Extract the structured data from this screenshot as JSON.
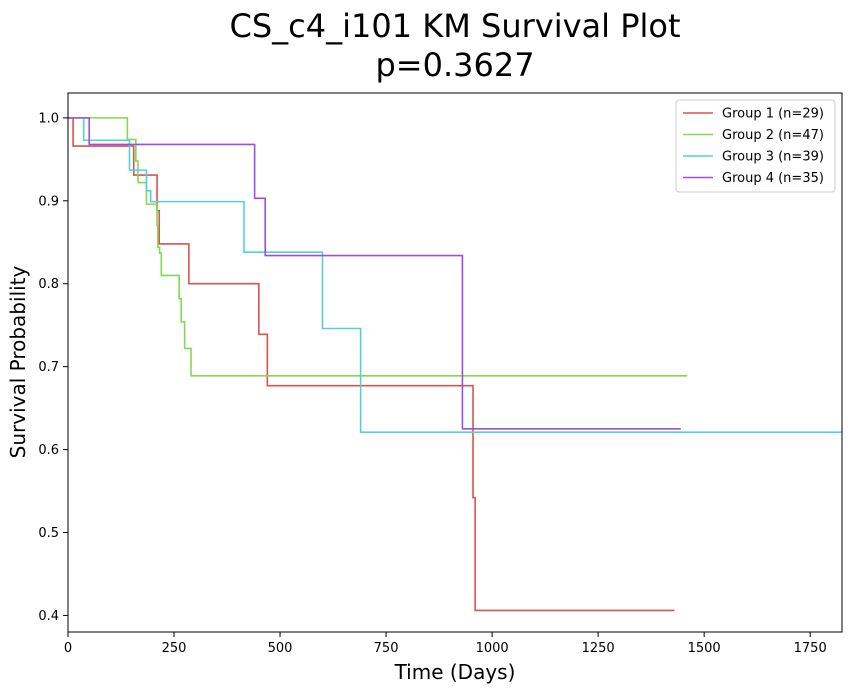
{
  "chart_data": {
    "type": "line",
    "title": "CS_c4_i101 KM Survival Plot",
    "subtitle": "p=0.3627",
    "xlabel": "Time (Days)",
    "ylabel": "Survival Probability",
    "xlim": [
      0,
      1825
    ],
    "ylim": [
      0.38,
      1.03
    ],
    "xticks": [
      0,
      250,
      500,
      750,
      1000,
      1250,
      1500,
      1750
    ],
    "yticks": [
      0.4,
      0.5,
      0.6,
      0.7,
      0.8,
      0.9,
      1.0
    ],
    "xtick_labels": [
      "0",
      "250",
      "500",
      "750",
      "1000",
      "1250",
      "1500",
      "1750"
    ],
    "ytick_labels": [
      "0.4",
      "0.5",
      "0.6",
      "0.7",
      "0.8",
      "0.9",
      "1.0"
    ],
    "grid": false,
    "legend_position": "top-right",
    "step": "post",
    "series": [
      {
        "name": "Group 1 (n=29)",
        "color": "#d9534f",
        "x": [
          0,
          12,
          45,
          155,
          200,
          210,
          215,
          285,
          450,
          462,
          470,
          950,
          955,
          960,
          1430
        ],
        "y": [
          1.0,
          0.966,
          0.966,
          0.931,
          0.931,
          0.888,
          0.848,
          0.8,
          0.739,
          0.739,
          0.677,
          0.677,
          0.542,
          0.406,
          0.406
        ]
      },
      {
        "name": "Group 2 (n=47)",
        "color": "#86d751",
        "x": [
          0,
          135,
          140,
          155,
          160,
          165,
          170,
          185,
          210,
          212,
          216,
          220,
          255,
          262,
          267,
          275,
          290,
          1460
        ],
        "y": [
          1.0,
          1.0,
          0.974,
          0.974,
          0.948,
          0.922,
          0.922,
          0.896,
          0.87,
          0.844,
          0.837,
          0.81,
          0.81,
          0.782,
          0.754,
          0.722,
          0.689,
          0.689
        ]
      },
      {
        "name": "Group 3 (n=39)",
        "color": "#57cfdb",
        "x": [
          0,
          37,
          48,
          145,
          165,
          185,
          195,
          415,
          600,
          690,
          1825
        ],
        "y": [
          1.0,
          0.973,
          0.973,
          0.937,
          0.937,
          0.912,
          0.899,
          0.838,
          0.746,
          0.621,
          0.621
        ]
      },
      {
        "name": "Group 4 (n=35)",
        "color": "#9b4fdb",
        "x": [
          0,
          50,
          440,
          465,
          930,
          1445
        ],
        "y": [
          1.0,
          0.968,
          0.903,
          0.834,
          0.625,
          0.625
        ]
      }
    ]
  }
}
